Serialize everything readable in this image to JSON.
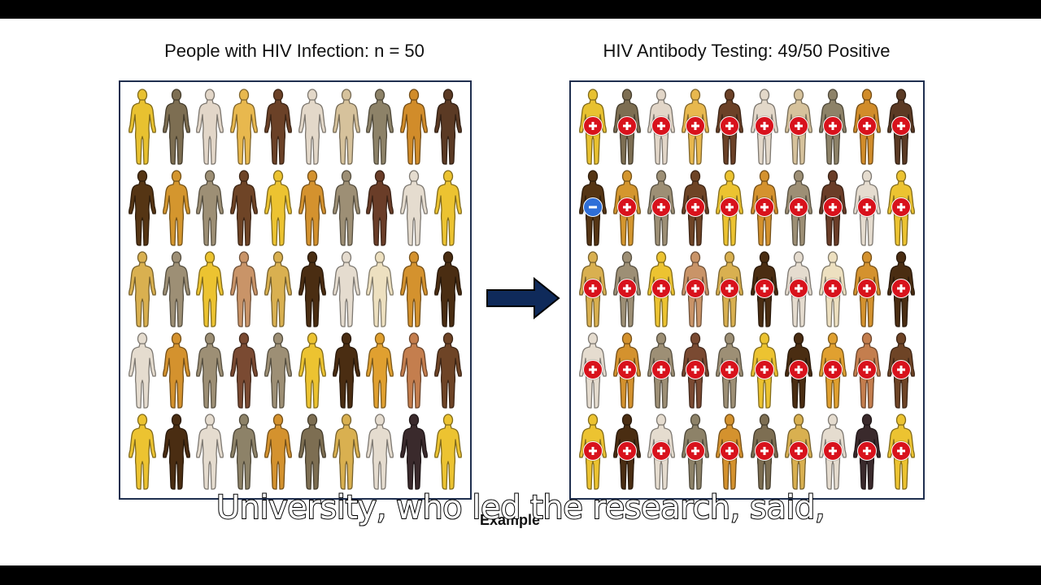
{
  "left_panel": {
    "title": "People with HIV Infection: n = 50",
    "rows": [
      [
        "#e8c130",
        "#7d6e52",
        "#e2d6c8",
        "#e8b84e",
        "#6b4127",
        "#e3d8c9",
        "#d6c29c",
        "#8d8268",
        "#d18c2a",
        "#5b3a24"
      ],
      [
        "#553514",
        "#d4962e",
        "#9d8f75",
        "#6e4426",
        "#ecc331",
        "#d4922e",
        "#9d8f75",
        "#6a3d28",
        "#e5dccf",
        "#ecc331"
      ],
      [
        "#d9b050",
        "#9d8f75",
        "#ecc331",
        "#c99468",
        "#d9b050",
        "#4a2d12",
        "#e5dccf",
        "#ede0c0",
        "#d4922e",
        "#4a2d12"
      ],
      [
        "#e5dccf",
        "#d4922e",
        "#9d8f75",
        "#7a4a32",
        "#9d8f75",
        "#ecc331",
        "#4a2d12",
        "#e0a030",
        "#c47e4e",
        "#6e4426"
      ],
      [
        "#ecc331",
        "#4a2d12",
        "#e5dccf",
        "#8d8268",
        "#d4922e",
        "#7d6e52",
        "#d9b050",
        "#e5dccf",
        "#3a2a2c",
        "#ecc331"
      ]
    ]
  },
  "right_panel": {
    "title": "HIV Antibody Testing: 49/50 Positive",
    "positive_count": 49,
    "total": 50,
    "negative_position": {
      "row": 1,
      "col": 0
    },
    "badge_colors": {
      "positive": "#d8121c",
      "negative": "#2f6fd8"
    },
    "badge_symbols": {
      "positive": "plus-icon",
      "negative": "minus-icon"
    }
  },
  "arrow": {
    "direction": "right",
    "color": "#0f2a5a"
  },
  "underlying_text": "Example",
  "caption": "University, who led the research, said,",
  "chart_data": {
    "type": "table",
    "title": "HIV Antibody Testing: 49/50 Positive",
    "categories": [
      "Positive",
      "Negative"
    ],
    "values": [
      49,
      1
    ],
    "total_population": 50,
    "subtitle": "People with HIV Infection: n = 50"
  }
}
